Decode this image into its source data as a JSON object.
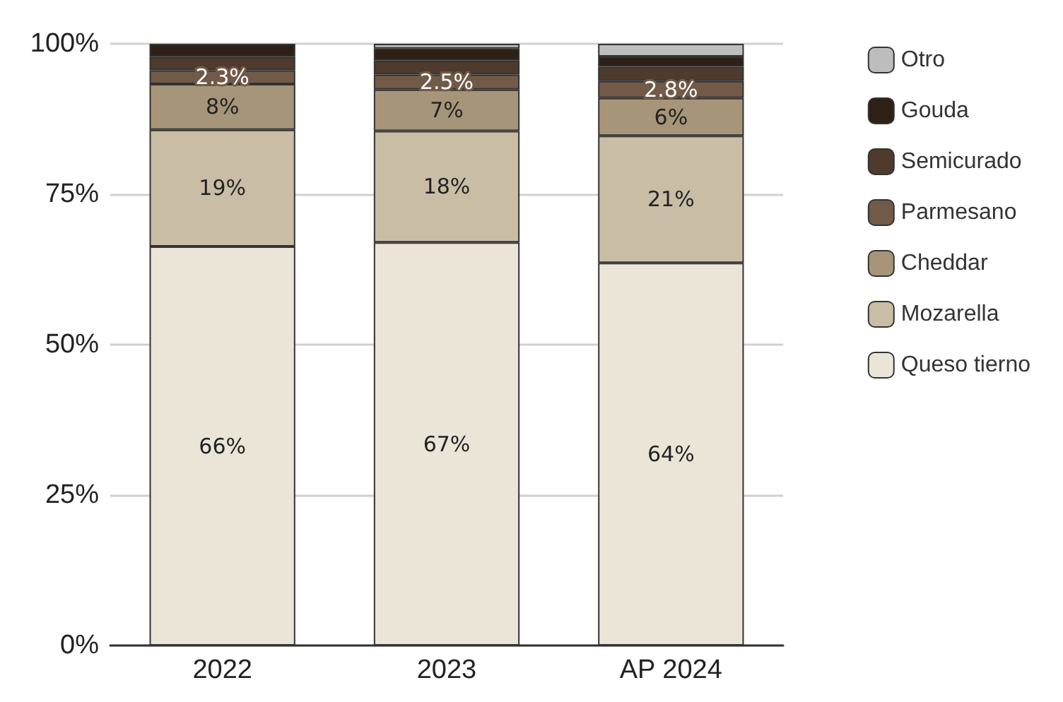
{
  "chart_data": {
    "type": "bar",
    "stacked": true,
    "categories": [
      "2022",
      "2023",
      "AP 2024"
    ],
    "series": [
      {
        "name": "Queso tierno",
        "color": "#ebe5d8",
        "values": [
          66.3,
          67.0,
          63.6
        ],
        "value_labels": [
          "66%",
          "67%",
          "64%"
        ]
      },
      {
        "name": "Mozarella",
        "color": "#c9bda6",
        "values": [
          19.4,
          18.5,
          21.1
        ],
        "value_labels": [
          "19%",
          "18%",
          "21%"
        ]
      },
      {
        "name": "Cheddar",
        "color": "#a69578",
        "values": [
          7.6,
          6.9,
          6.3
        ],
        "value_labels": [
          "8%",
          "7%",
          "6%"
        ]
      },
      {
        "name": "Parmesano",
        "color": "#725a48",
        "values": [
          2.3,
          2.5,
          2.8
        ],
        "value_labels": [
          "2.3%",
          "2.5%",
          "2.8%"
        ]
      },
      {
        "name": "Semicurado",
        "color": "#4e3b2d",
        "values": [
          2.2,
          2.3,
          2.4
        ],
        "value_labels": [
          null,
          null,
          null
        ]
      },
      {
        "name": "Gouda",
        "color": "#2e2016",
        "values": [
          2.2,
          2.0,
          1.7
        ],
        "value_labels": [
          null,
          null,
          null
        ]
      },
      {
        "name": "Otro",
        "color": "#bdbdbd",
        "values": [
          0,
          0.8,
          2.1
        ],
        "value_labels": [
          null,
          null,
          null
        ]
      }
    ],
    "ylim": [
      0,
      100
    ],
    "yticks": [
      {
        "value": 0,
        "label": "0%"
      },
      {
        "value": 25,
        "label": "25%"
      },
      {
        "value": 50,
        "label": "50%"
      },
      {
        "value": 75,
        "label": "75%"
      },
      {
        "value": 100,
        "label": "100%"
      }
    ],
    "grid": "y",
    "legend": "right"
  }
}
